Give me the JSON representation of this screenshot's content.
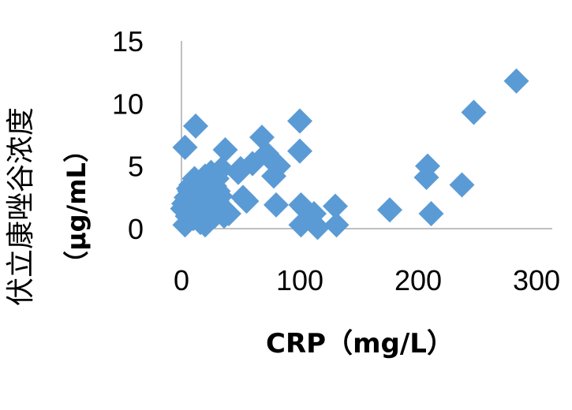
{
  "chart_data": {
    "type": "scatter",
    "xlabel": "CRP（mg/L）",
    "ylabel": "伏立康唑谷浓度",
    "ylabel_unit": "（μg/mL）",
    "xlim": [
      0,
      300
    ],
    "ylim": [
      0,
      15
    ],
    "x_ticks": [
      "0",
      "100",
      "200",
      "300"
    ],
    "y_ticks": [
      "0",
      "5",
      "10",
      "15"
    ],
    "grid": false,
    "marker_color": "#5B9BD5",
    "marker": "diamond",
    "points": [
      [
        283,
        11.8
      ],
      [
        247,
        9.3
      ],
      [
        208,
        5.0
      ],
      [
        207,
        4.1
      ],
      [
        237,
        3.5
      ],
      [
        211,
        1.2
      ],
      [
        176,
        1.5
      ],
      [
        100,
        8.6
      ],
      [
        100,
        6.2
      ],
      [
        101,
        1.9
      ],
      [
        104,
        1.6
      ],
      [
        101,
        0.3
      ],
      [
        108,
        0.8
      ],
      [
        112,
        1.2
      ],
      [
        115,
        0.1
      ],
      [
        130,
        1.8
      ],
      [
        131,
        0.3
      ],
      [
        12,
        8.2
      ],
      [
        3,
        6.5
      ],
      [
        37,
        6.3
      ],
      [
        68,
        7.3
      ],
      [
        72,
        6.0
      ],
      [
        76,
        5.5
      ],
      [
        82,
        5.0
      ],
      [
        78,
        4.2
      ],
      [
        60,
        5.2
      ],
      [
        50,
        4.8
      ],
      [
        48,
        4.5
      ],
      [
        34,
        4.8
      ],
      [
        30,
        4.0
      ],
      [
        25,
        4.5
      ],
      [
        52,
        2.5
      ],
      [
        55,
        2.2
      ],
      [
        80,
        1.9
      ],
      [
        40,
        1.2
      ],
      [
        36,
        1.0
      ],
      [
        2,
        2.0
      ],
      [
        4,
        2.5
      ],
      [
        5,
        1.0
      ],
      [
        6,
        1.5
      ],
      [
        7,
        3.0
      ],
      [
        8,
        3.5
      ],
      [
        8,
        2.2
      ],
      [
        10,
        0.8
      ],
      [
        10,
        1.8
      ],
      [
        11,
        4.0
      ],
      [
        12,
        2.8
      ],
      [
        13,
        1.2
      ],
      [
        14,
        3.3
      ],
      [
        15,
        2.0
      ],
      [
        16,
        0.5
      ],
      [
        17,
        3.8
      ],
      [
        18,
        1.5
      ],
      [
        19,
        2.6
      ],
      [
        20,
        4.2
      ],
      [
        20,
        0.3
      ],
      [
        21,
        2.0
      ],
      [
        22,
        3.0
      ],
      [
        23,
        1.0
      ],
      [
        24,
        3.6
      ],
      [
        25,
        2.4
      ],
      [
        26,
        1.7
      ],
      [
        27,
        2.9
      ],
      [
        28,
        3.4
      ],
      [
        29,
        1.3
      ],
      [
        30,
        2.2
      ],
      [
        31,
        3.0
      ],
      [
        32,
        1.8
      ],
      [
        33,
        2.6
      ],
      [
        3,
        0.3
      ],
      [
        6,
        3.2
      ],
      [
        9,
        2.0
      ],
      [
        15,
        1.0
      ],
      [
        18,
        3.0
      ],
      [
        24,
        2.0
      ],
      [
        28,
        1.0
      ],
      [
        12,
        3.8
      ],
      [
        16,
        2.3
      ],
      [
        22,
        2.7
      ],
      [
        5,
        2.3
      ],
      [
        1,
        1.6
      ]
    ]
  }
}
